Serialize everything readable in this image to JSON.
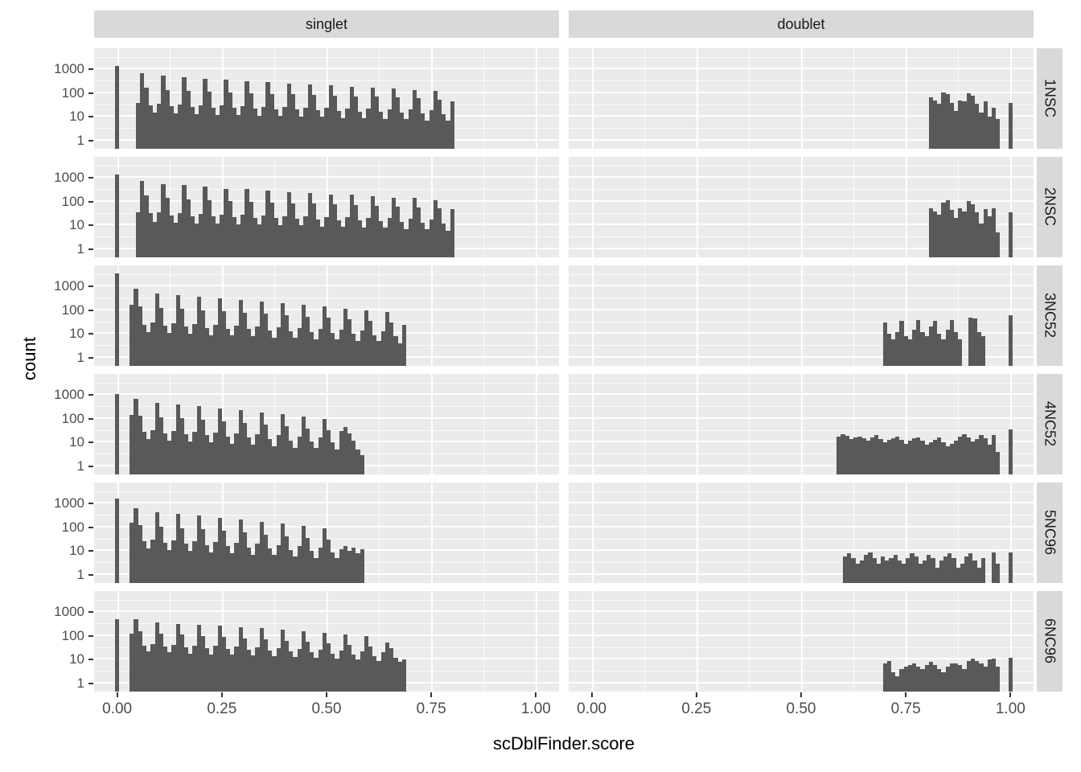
{
  "figure": {
    "x_axis": {
      "title": "scDblFinder.score",
      "tick_labels": [
        "0.00",
        "0.25",
        "0.50",
        "0.75",
        "1.00"
      ],
      "tick_values": [
        0,
        0.25,
        0.5,
        0.75,
        1.0
      ],
      "minor_tick_values": [
        0.125,
        0.375,
        0.625,
        0.875
      ],
      "domain": [
        -0.055,
        1.055
      ]
    },
    "y_axis": {
      "title": "count",
      "tick_labels": [
        "1000",
        "100",
        "10",
        "1"
      ],
      "tick_values": [
        1000,
        100,
        10,
        1
      ],
      "minor_log_values": [
        0.5,
        1.5,
        2.5,
        3.5
      ],
      "log_domain": [
        -0.35,
        3.9
      ],
      "scale": "log10"
    },
    "columns": [
      "singlet",
      "doublet"
    ],
    "rows": [
      "1NSC",
      "2NSC",
      "3NC52",
      "4NC52",
      "5NC96",
      "6NC96"
    ],
    "colors": {
      "bar": "#595959",
      "panel_bg": "#EBEBEB",
      "strip_bg": "#D9D9D9",
      "grid_major": "#FFFFFF",
      "grid_minor": "#FFFFFF",
      "axis_text": "#4D4D4D",
      "tick_mark": "#333333",
      "title_text": "#000000"
    }
  },
  "chart_data": {
    "type": "bar",
    "subtype": "faceted-histogram",
    "title": "",
    "xlabel": "scDblFinder.score",
    "ylabel": "count",
    "y_scale": "log10",
    "ylim": [
      1,
      1000
    ],
    "xlim": [
      0,
      1
    ],
    "binwidth": 0.01,
    "legend": "none",
    "grid": true,
    "facets": [
      {
        "row": "1NSC",
        "col": "singlet",
        "runs": [
          {
            "x0": -0.005,
            "counts": [
              1400
            ]
          },
          {
            "x0": 0.045,
            "counts": [
              40,
              700,
              170,
              30,
              15,
              35,
              560,
              140,
              28,
              14,
              33,
              480,
              130,
              26,
              13,
              30,
              420,
              120,
              25,
              12,
              30,
              370,
              110,
              24,
              12,
              28,
              330,
              100,
              22,
              11,
              27,
              290,
              95,
              21,
              11,
              26,
              260,
              90,
              20,
              10,
              25,
              230,
              85,
              19,
              10,
              24,
              210,
              80,
              18,
              9,
              23,
              190,
              75,
              17,
              9,
              22,
              170,
              70,
              16,
              8,
              21,
              155,
              65,
              15,
              8,
              20,
              140,
              60,
              14,
              7,
              19,
              125,
              55,
              13,
              7,
              45
            ]
          }
        ]
      },
      {
        "row": "1NSC",
        "col": "doublet",
        "runs": [
          {
            "x0": 0.805,
            "counts": [
              65,
              50,
              35,
              110,
              90,
              40,
              18,
              50,
              45,
              100,
              80,
              35,
              15,
              45,
              10,
              25,
              8
            ]
          },
          {
            "x0": 0.995,
            "counts": [
              40
            ]
          }
        ]
      },
      {
        "row": "2NSC",
        "col": "singlet",
        "runs": [
          {
            "x0": -0.005,
            "counts": [
              1400
            ]
          },
          {
            "x0": 0.045,
            "counts": [
              35,
              750,
              180,
              32,
              14,
              36,
              540,
              145,
              27,
              13,
              34,
              500,
              128,
              25,
              12,
              31,
              430,
              118,
              24,
              12,
              29,
              360,
              108,
              23,
              11,
              28,
              340,
              98,
              21,
              11,
              26,
              300,
              92,
              20,
              10,
              25,
              255,
              88,
              19,
              10,
              24,
              235,
              82,
              18,
              9,
              23,
              205,
              78,
              17,
              9,
              22,
              195,
              72,
              16,
              8,
              21,
              175,
              68,
              15,
              8,
              20,
              150,
              62,
              14,
              7,
              19,
              145,
              58,
              13,
              7,
              18,
              120,
              52,
              12,
              6,
              50
            ]
          }
        ]
      },
      {
        "row": "2NSC",
        "col": "doublet",
        "runs": [
          {
            "x0": 0.805,
            "counts": [
              55,
              40,
              28,
              95,
              115,
              45,
              20,
              55,
              40,
              105,
              80,
              35,
              12,
              48,
              25,
              55,
              5
            ]
          },
          {
            "x0": 0.995,
            "counts": [
              35
            ]
          }
        ]
      },
      {
        "row": "3NC52",
        "col": "singlet",
        "runs": [
          {
            "x0": -0.005,
            "counts": [
              3500
            ]
          },
          {
            "x0": 0.03,
            "counts": [
              170,
              800,
              150,
              25,
              12,
              30,
              520,
              130,
              22,
              11,
              28,
              440,
              115,
              20,
              10,
              26,
              380,
              100,
              18,
              9,
              24,
              330,
              90,
              17,
              9,
              22,
              280,
              80,
              16,
              8,
              20,
              240,
              70,
              14,
              7,
              19,
              200,
              62,
              13,
              7,
              18,
              170,
              55,
              12,
              6,
              16,
              145,
              48,
              11,
              6,
              15,
              120,
              42,
              10,
              5,
              14,
              100,
              36,
              9,
              5,
              13,
              85,
              30,
              8,
              4,
              25
            ]
          }
        ]
      },
      {
        "row": "3NC52",
        "col": "doublet",
        "runs": [
          {
            "x0": 0.695,
            "counts": [
              30,
              10,
              6,
              12,
              35,
              8,
              6,
              15,
              40,
              12,
              8,
              20,
              35,
              10,
              6,
              15,
              40,
              12,
              6
            ]
          },
          {
            "x0": 0.9,
            "counts": [
              50,
              45,
              12,
              8
            ]
          },
          {
            "x0": 0.995,
            "counts": [
              60
            ]
          }
        ]
      },
      {
        "row": "4NC52",
        "col": "singlet",
        "runs": [
          {
            "x0": -0.005,
            "counts": [
              1100
            ]
          },
          {
            "x0": 0.03,
            "counts": [
              150,
              700,
              140,
              28,
              14,
              32,
              480,
              120,
              25,
              12,
              30,
              400,
              105,
              22,
              11,
              28,
              340,
              92,
              20,
              10,
              26,
              280,
              80,
              18,
              9,
              24,
              230,
              68,
              16,
              8,
              22,
              190,
              58,
              14,
              7,
              20,
              155,
              48,
              12,
              6,
              18,
              125,
              40,
              11,
              6,
              16,
              100,
              34,
              10,
              5,
              30,
              45,
              25,
              12,
              5,
              3
            ]
          }
        ]
      },
      {
        "row": "4NC52",
        "col": "doublet",
        "runs": [
          {
            "x0": 0.585,
            "counts": [
              18,
              22,
              19,
              14,
              16,
              18,
              15,
              12,
              16,
              20,
              14,
              10,
              13,
              15,
              18,
              13,
              9,
              12,
              15,
              17,
              12,
              8,
              10,
              13,
              16,
              10,
              7,
              9,
              12,
              18,
              22,
              16,
              11,
              14,
              20,
              15,
              8,
              20,
              4
            ]
          },
          {
            "x0": 0.995,
            "counts": [
              35
            ]
          }
        ]
      },
      {
        "row": "5NC96",
        "col": "singlet",
        "runs": [
          {
            "x0": -0.005,
            "counts": [
              1600
            ]
          },
          {
            "x0": 0.03,
            "counts": [
              160,
              650,
              130,
              26,
              13,
              30,
              450,
              110,
              23,
              11,
              28,
              370,
              95,
              20,
              10,
              26,
              310,
              82,
              18,
              9,
              24,
              260,
              70,
              16,
              8,
              22,
              210,
              60,
              14,
              7,
              20,
              175,
              50,
              13,
              7,
              18,
              145,
              42,
              11,
              6,
              16,
              120,
              36,
              10,
              5,
              14,
              95,
              30,
              9,
              5,
              12,
              16,
              10,
              14,
              8,
              12
            ]
          }
        ]
      },
      {
        "row": "5NC96",
        "col": "doublet",
        "runs": [
          {
            "x0": 0.6,
            "counts": [
              6,
              8,
              5,
              3,
              4,
              7,
              9,
              5,
              3,
              6,
              4,
              5,
              7,
              4,
              3,
              5,
              8,
              6,
              3,
              4,
              7,
              5,
              2,
              4,
              6,
              8,
              5,
              2,
              3,
              6,
              8,
              4,
              2,
              5
            ]
          },
          {
            "x0": 0.955,
            "counts": [
              9,
              3
            ]
          },
          {
            "x0": 0.995,
            "counts": [
              9
            ]
          }
        ]
      },
      {
        "row": "6NC96",
        "col": "singlet",
        "runs": [
          {
            "x0": -0.005,
            "counts": [
              500
            ]
          },
          {
            "x0": 0.03,
            "counts": [
              130,
              500,
              160,
              40,
              22,
              45,
              380,
              130,
              36,
              20,
              42,
              330,
              115,
              33,
              18,
              40,
              300,
              100,
              30,
              17,
              38,
              270,
              90,
              28,
              16,
              35,
              240,
              80,
              26,
              15,
              32,
              210,
              72,
              24,
              14,
              30,
              185,
              64,
              22,
              13,
              28,
              160,
              56,
              20,
              12,
              26,
              140,
              48,
              18,
              11,
              24,
              120,
              42,
              16,
              10,
              22,
              100,
              36,
              14,
              9,
              20,
              55,
              30,
              12,
              8,
              10
            ]
          }
        ]
      },
      {
        "row": "6NC96",
        "col": "doublet",
        "runs": [
          {
            "x0": 0.695,
            "counts": [
              7,
              9,
              3,
              2,
              4,
              5,
              6,
              7,
              5,
              4,
              6,
              8,
              6,
              4,
              3,
              5,
              7,
              7,
              6,
              4,
              9,
              11,
              9,
              7,
              5,
              10,
              11,
              5
            ]
          },
          {
            "x0": 0.995,
            "counts": [
              12
            ]
          }
        ]
      }
    ]
  }
}
